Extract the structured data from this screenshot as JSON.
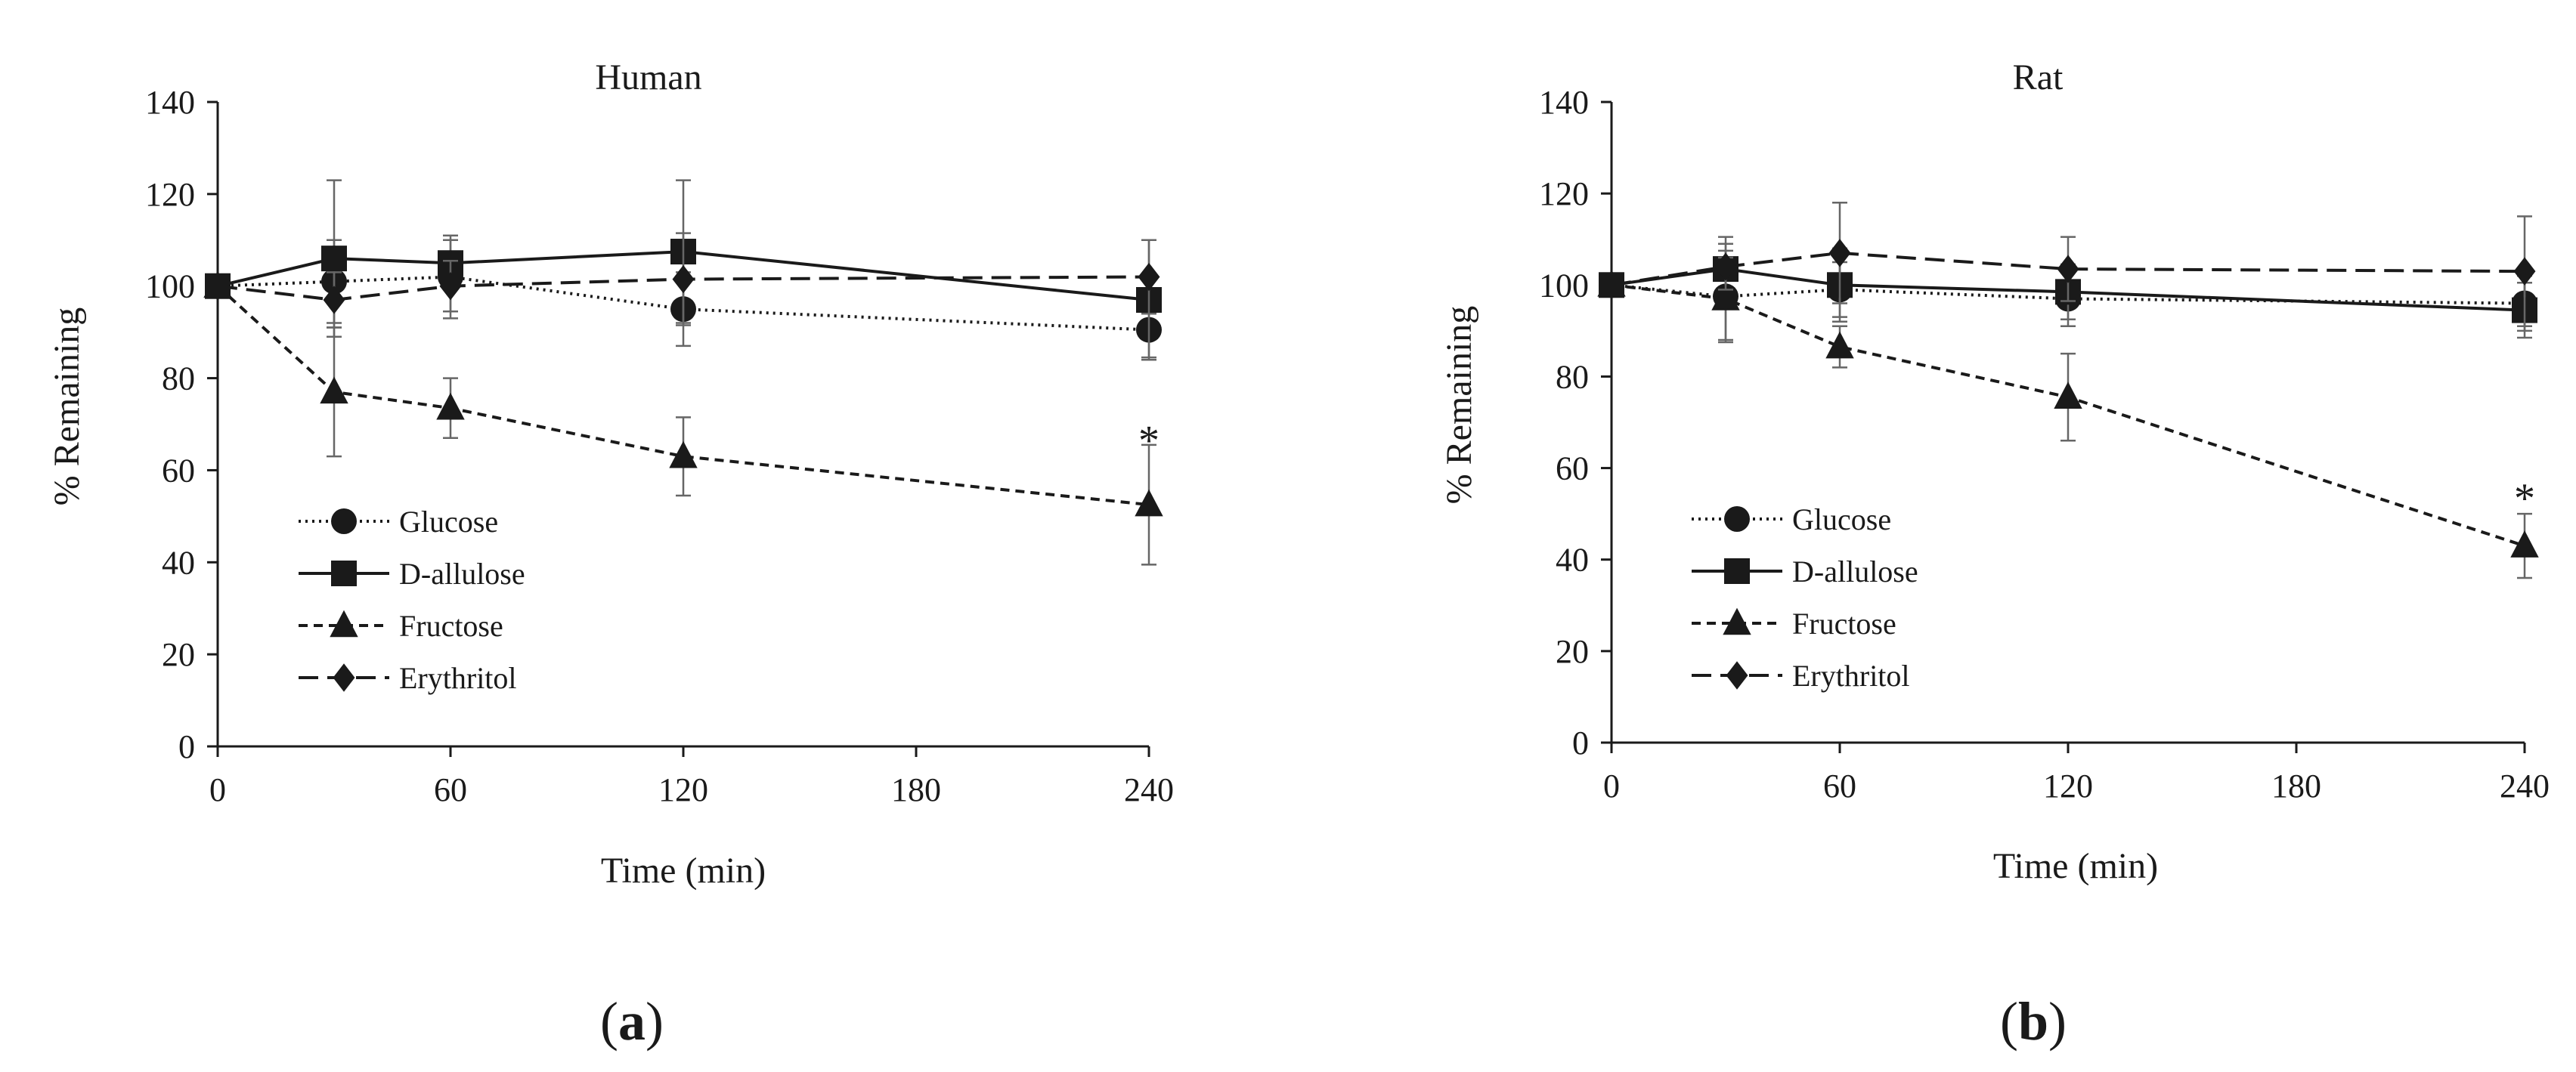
{
  "chart_data": [
    {
      "type": "line",
      "panel_label": "a",
      "title": "Human",
      "xlabel": "Time (min)",
      "ylabel": "% Remaining",
      "xlim": [
        0,
        240
      ],
      "ylim": [
        0,
        140
      ],
      "xticks": [
        0,
        60,
        120,
        180,
        240
      ],
      "yticks": [
        0,
        20,
        40,
        60,
        80,
        100,
        120,
        140
      ],
      "grid": false,
      "legend_position": "bottom-left",
      "series": [
        {
          "name": "Glucose",
          "marker": "circle",
          "dash": "dotted",
          "x": [
            0,
            30,
            60,
            120,
            240
          ],
          "y": [
            100,
            101,
            102,
            95,
            90.5
          ],
          "err": [
            0,
            9,
            9,
            8,
            6
          ]
        },
        {
          "name": "D-allulose",
          "marker": "square",
          "dash": "solid",
          "x": [
            0,
            30,
            60,
            120,
            240
          ],
          "y": [
            100,
            106,
            105,
            107.5,
            97
          ],
          "err": [
            0,
            17,
            5,
            15.5,
            13
          ]
        },
        {
          "name": "Fructose",
          "marker": "triangle",
          "dash": "short-dash",
          "x": [
            0,
            30,
            60,
            120,
            240
          ],
          "y": [
            100,
            77,
            73.5,
            63,
            52.5
          ],
          "err": [
            0,
            14,
            6.5,
            8.5,
            13
          ]
        },
        {
          "name": "Erythritol",
          "marker": "diamond",
          "dash": "long-dash",
          "x": [
            0,
            30,
            60,
            120,
            240
          ],
          "y": [
            100,
            97,
            100,
            101.5,
            102
          ],
          "err": [
            0,
            6,
            5.5,
            10,
            8
          ]
        }
      ],
      "annotations": [
        {
          "text": "*",
          "x": 240,
          "y": 68
        }
      ]
    },
    {
      "type": "line",
      "panel_label": "b",
      "title": "Rat",
      "xlabel": "Time (min)",
      "ylabel": "% Remaining",
      "xlim": [
        0,
        240
      ],
      "ylim": [
        0,
        140
      ],
      "xticks": [
        0,
        60,
        120,
        180,
        240
      ],
      "yticks": [
        0,
        20,
        40,
        60,
        80,
        100,
        120,
        140
      ],
      "grid": false,
      "legend_position": "bottom-left",
      "series": [
        {
          "name": "Glucose",
          "marker": "circle",
          "dash": "dotted",
          "x": [
            0,
            30,
            60,
            120,
            240
          ],
          "y": [
            100,
            97.5,
            99,
            97,
            96
          ],
          "err": [
            0,
            10,
            6,
            6,
            6
          ]
        },
        {
          "name": "D-allulose",
          "marker": "square",
          "dash": "solid",
          "x": [
            0,
            30,
            60,
            120,
            240
          ],
          "y": [
            100,
            103.5,
            100,
            98.5,
            94.5
          ],
          "err": [
            0,
            7,
            8,
            6,
            6
          ]
        },
        {
          "name": "Fructose",
          "marker": "triangle",
          "dash": "short-dash",
          "x": [
            0,
            30,
            60,
            120,
            240
          ],
          "y": [
            100,
            97,
            86.5,
            75.5,
            43
          ],
          "err": [
            0,
            9,
            4.5,
            9.5,
            7
          ]
        },
        {
          "name": "Erythritol",
          "marker": "diamond",
          "dash": "long-dash",
          "x": [
            0,
            30,
            60,
            120,
            240
          ],
          "y": [
            100,
            104,
            107,
            103.5,
            103
          ],
          "err": [
            0,
            5,
            11,
            7,
            12
          ]
        }
      ],
      "annotations": [
        {
          "text": "*",
          "x": 240,
          "y": 55
        }
      ]
    }
  ]
}
